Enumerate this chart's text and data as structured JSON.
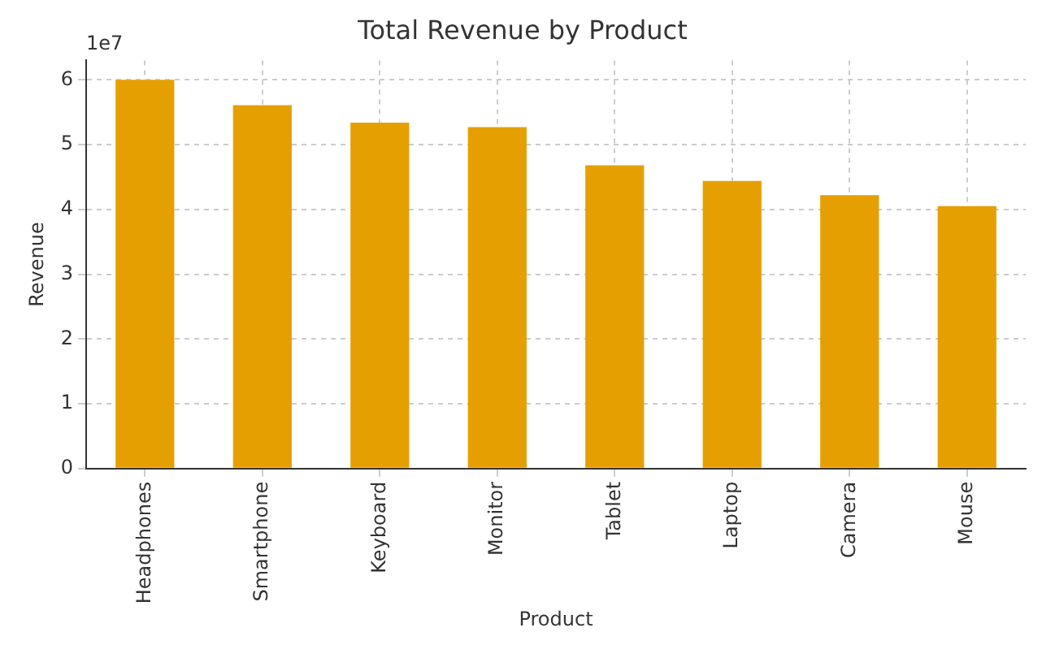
{
  "chart_data": {
    "type": "bar",
    "title": "Total Revenue by Product",
    "xlabel": "Product",
    "ylabel": "Revenue",
    "categories": [
      "Headphones",
      "Smartphone",
      "Keyboard",
      "Monitor",
      "Tablet",
      "Laptop",
      "Camera",
      "Mouse"
    ],
    "values": [
      6.0,
      5.61,
      5.34,
      5.27,
      4.68,
      4.44,
      4.22,
      4.05
    ],
    "color": "#e69f00",
    "ylim": [
      0,
      6.3
    ],
    "yticks": [
      0,
      1,
      2,
      3,
      4,
      5,
      6
    ],
    "annotations": [
      "1e7"
    ],
    "grid": true,
    "legend": false
  }
}
